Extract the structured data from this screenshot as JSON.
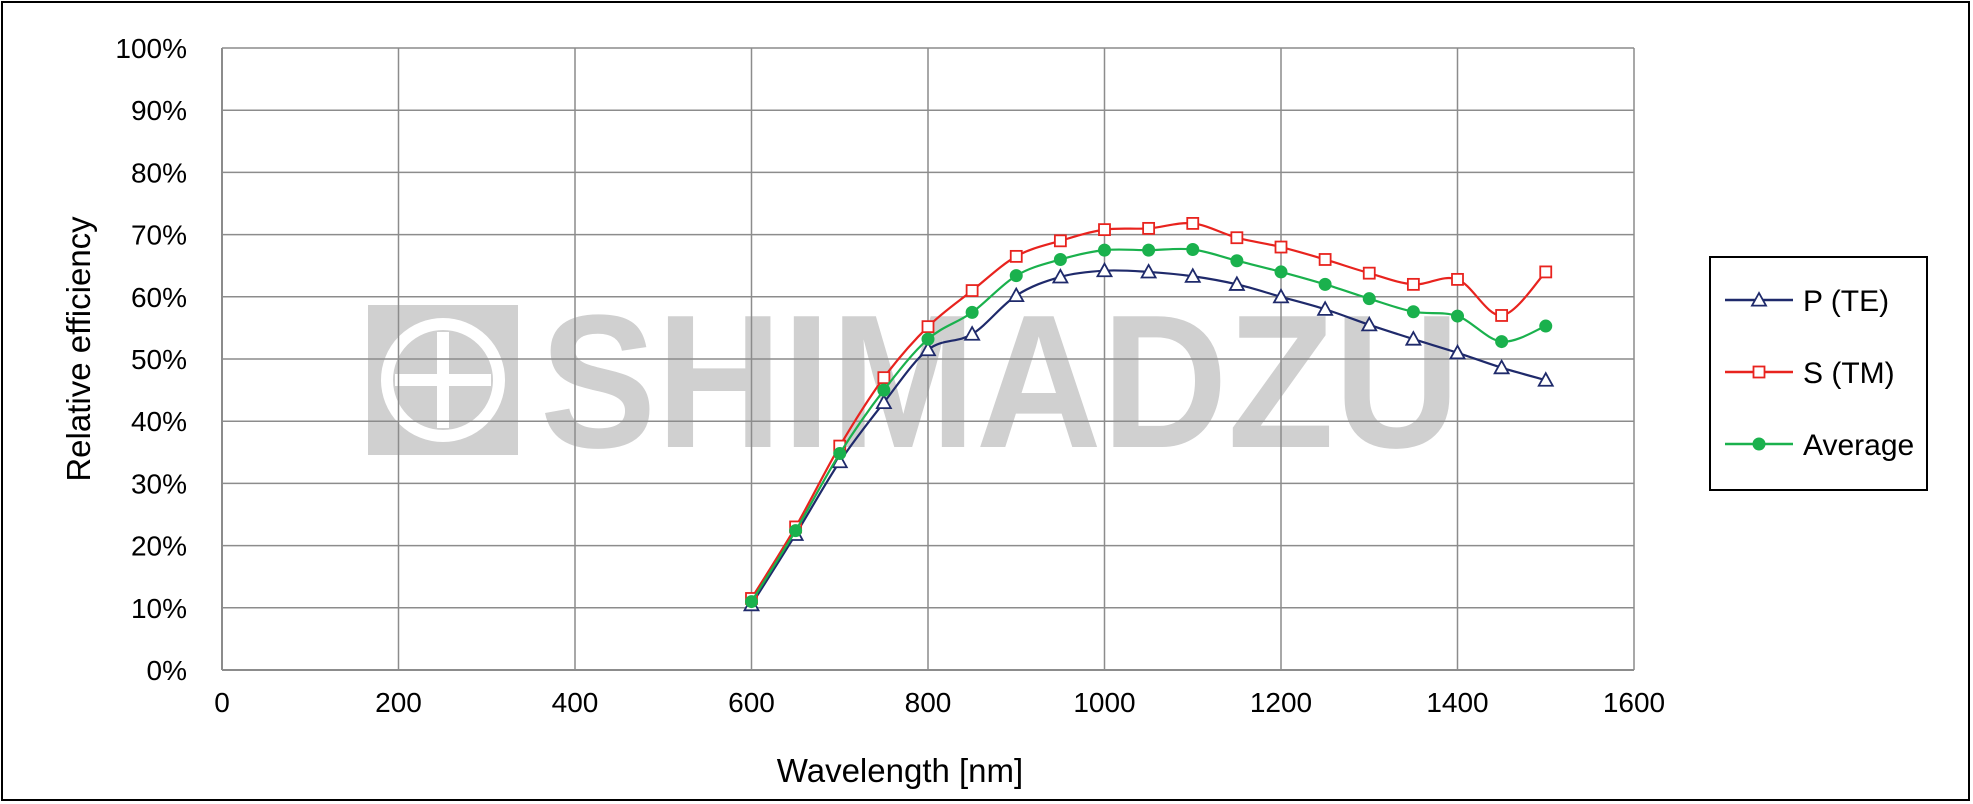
{
  "watermark": {
    "text": "SHIMADZU",
    "color": "#d0d0d0"
  },
  "chart_data": {
    "type": "line",
    "title": "",
    "xlabel": "Wavelength [nm]",
    "ylabel": "Relative efficiency",
    "xlim": [
      0,
      1600
    ],
    "ylim": [
      0,
      100
    ],
    "x_ticks": [
      "0",
      "200",
      "400",
      "600",
      "800",
      "1000",
      "1200",
      "1400",
      "1600"
    ],
    "y_ticks": [
      "0%",
      "10%",
      "20%",
      "30%",
      "40%",
      "50%",
      "60%",
      "70%",
      "80%",
      "90%",
      "100%"
    ],
    "grid": true,
    "legend_position": "right",
    "x": [
      600,
      650,
      700,
      750,
      800,
      850,
      900,
      950,
      1000,
      1050,
      1100,
      1150,
      1200,
      1250,
      1300,
      1350,
      1400,
      1450,
      1500
    ],
    "series": [
      {
        "name": "P (TE)",
        "color": "#1f2a6b",
        "marker": "triangle-open",
        "values": [
          10.5,
          21.8,
          33.5,
          43,
          51.5,
          54,
          60.2,
          63.2,
          64.2,
          64,
          63.3,
          62,
          60,
          58,
          55.5,
          53.2,
          51,
          48.6,
          46.6
        ]
      },
      {
        "name": "S (TM)",
        "color": "#e8231e",
        "marker": "square-open",
        "values": [
          11.5,
          23,
          36,
          47,
          55.2,
          61,
          66.5,
          69,
          70.8,
          71,
          71.8,
          69.5,
          68,
          66,
          63.8,
          62,
          62.8,
          57,
          64
        ]
      },
      {
        "name": "Average",
        "color": "#1ab14d",
        "marker": "circle-filled",
        "values": [
          11,
          22.4,
          34.8,
          45,
          53.2,
          57.5,
          63.4,
          66,
          67.5,
          67.5,
          67.6,
          65.8,
          64,
          62,
          59.7,
          57.6,
          56.9,
          52.8,
          55.3
        ]
      }
    ]
  }
}
